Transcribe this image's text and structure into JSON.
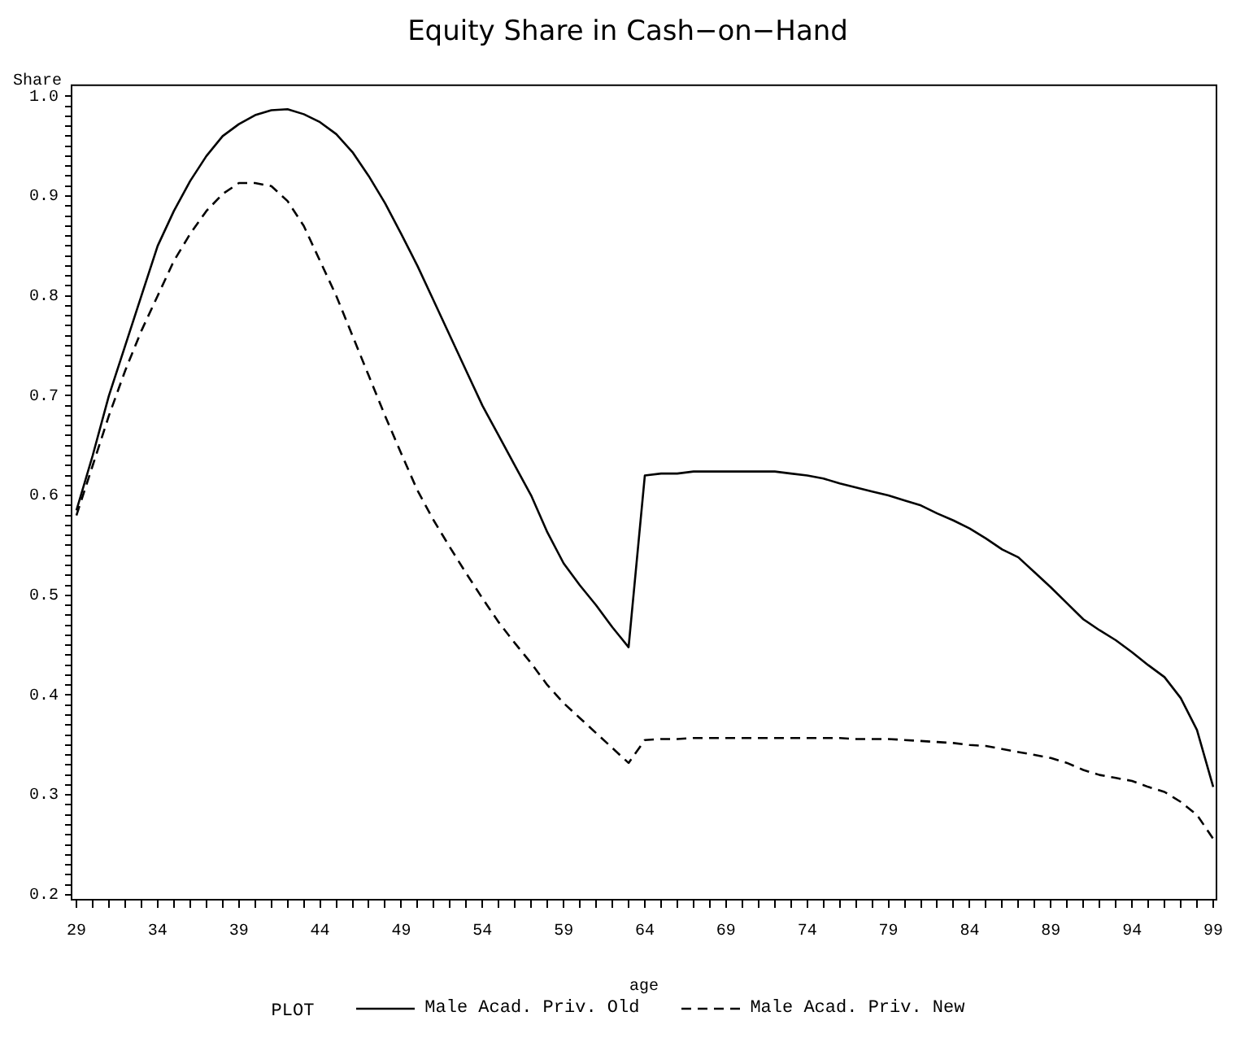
{
  "chart_data": {
    "type": "line",
    "title": "Equity Share in Cash−on−Hand",
    "xlabel": "age",
    "ylabel": "Share",
    "legend_title": "PLOT",
    "legend": "bottom",
    "x": [
      29,
      30,
      31,
      32,
      33,
      34,
      35,
      36,
      37,
      38,
      39,
      40,
      41,
      42,
      43,
      44,
      45,
      46,
      47,
      48,
      49,
      50,
      51,
      52,
      53,
      54,
      55,
      56,
      57,
      58,
      59,
      60,
      61,
      62,
      63,
      64,
      65,
      66,
      67,
      68,
      69,
      70,
      71,
      72,
      73,
      74,
      75,
      76,
      77,
      78,
      79,
      80,
      81,
      82,
      83,
      84,
      85,
      86,
      87,
      88,
      89,
      90,
      91,
      92,
      93,
      94,
      95,
      96,
      97,
      98,
      99
    ],
    "series": [
      {
        "name": "Male Acad. Priv. Old",
        "color": "#000000",
        "line_style": "solid",
        "values": [
          0.585,
          0.64,
          0.7,
          0.75,
          0.8,
          0.85,
          0.885,
          0.915,
          0.94,
          0.96,
          0.972,
          0.981,
          0.986,
          0.987,
          0.982,
          0.974,
          0.962,
          0.944,
          0.92,
          0.893,
          0.862,
          0.83,
          0.795,
          0.76,
          0.725,
          0.69,
          0.66,
          0.63,
          0.6,
          0.563,
          0.532,
          0.51,
          0.49,
          0.468,
          0.448,
          0.62,
          0.622,
          0.622,
          0.624,
          0.624,
          0.624,
          0.624,
          0.624,
          0.624,
          0.622,
          0.62,
          0.617,
          0.612,
          0.608,
          0.604,
          0.6,
          0.595,
          0.59,
          0.582,
          0.575,
          0.567,
          0.557,
          0.546,
          0.538,
          0.523,
          0.508,
          0.492,
          0.476,
          0.465,
          0.455,
          0.443,
          0.43,
          0.418,
          0.397,
          0.365,
          0.308
        ]
      },
      {
        "name": "Male Acad. Priv. New",
        "color": "#000000",
        "line_style": "dashed",
        "values": [
          0.58,
          0.63,
          0.68,
          0.725,
          0.765,
          0.8,
          0.835,
          0.862,
          0.885,
          0.902,
          0.913,
          0.913,
          0.91,
          0.895,
          0.87,
          0.835,
          0.8,
          0.76,
          0.72,
          0.68,
          0.642,
          0.605,
          0.575,
          0.548,
          0.522,
          0.497,
          0.473,
          0.452,
          0.432,
          0.41,
          0.392,
          0.377,
          0.362,
          0.347,
          0.332,
          0.355,
          0.356,
          0.356,
          0.357,
          0.357,
          0.357,
          0.357,
          0.357,
          0.357,
          0.357,
          0.357,
          0.357,
          0.357,
          0.356,
          0.356,
          0.356,
          0.355,
          0.354,
          0.353,
          0.352,
          0.35,
          0.349,
          0.346,
          0.343,
          0.34,
          0.337,
          0.332,
          0.325,
          0.32,
          0.317,
          0.314,
          0.308,
          0.303,
          0.293,
          0.28,
          0.256
        ]
      }
    ],
    "xlim": [
      28.7,
      99.2
    ],
    "ylim": [
      0.195,
      1.011
    ],
    "xticks": [
      29,
      {
        "value": 30,
        "label": null
      },
      {
        "value": 31,
        "label": null
      },
      {
        "value": 32,
        "label": null
      },
      {
        "value": 33,
        "label": null
      },
      34,
      {
        "value": 35,
        "label": null
      },
      {
        "value": 36,
        "label": null
      },
      {
        "value": 37,
        "label": null
      },
      {
        "value": 38,
        "label": null
      },
      39,
      {
        "value": 40,
        "label": null
      },
      {
        "value": 41,
        "label": null
      },
      {
        "value": 42,
        "label": null
      },
      {
        "value": 43,
        "label": null
      },
      44,
      {
        "value": 45,
        "label": null
      },
      {
        "value": 46,
        "label": null
      },
      {
        "value": 47,
        "label": null
      },
      {
        "value": 48,
        "label": null
      },
      49,
      {
        "value": 50,
        "label": null
      },
      {
        "value": 51,
        "label": null
      },
      {
        "value": 52,
        "label": null
      },
      {
        "value": 53,
        "label": null
      },
      54,
      {
        "value": 55,
        "label": null
      },
      {
        "value": 56,
        "label": null
      },
      {
        "value": 57,
        "label": null
      },
      {
        "value": 58,
        "label": null
      },
      59,
      {
        "value": 60,
        "label": null
      },
      {
        "value": 61,
        "label": null
      },
      {
        "value": 62,
        "label": null
      },
      {
        "value": 63,
        "label": null
      },
      64,
      {
        "value": 65,
        "label": null
      },
      {
        "value": 66,
        "label": null
      },
      {
        "value": 67,
        "label": null
      },
      {
        "value": 68,
        "label": null
      },
      69,
      {
        "value": 70,
        "label": null
      },
      {
        "value": 71,
        "label": null
      },
      {
        "value": 72,
        "label": null
      },
      {
        "value": 73,
        "label": null
      },
      74,
      {
        "value": 75,
        "label": null
      },
      {
        "value": 76,
        "label": null
      },
      {
        "value": 77,
        "label": null
      },
      {
        "value": 78,
        "label": null
      },
      79,
      {
        "value": 80,
        "label": null
      },
      {
        "value": 81,
        "label": null
      },
      {
        "value": 82,
        "label": null
      },
      {
        "value": 83,
        "label": null
      },
      84,
      {
        "value": 85,
        "label": null
      },
      {
        "value": 86,
        "label": null
      },
      {
        "value": 87,
        "label": null
      },
      {
        "value": 88,
        "label": null
      },
      89,
      {
        "value": 90,
        "label": null
      },
      {
        "value": 91,
        "label": null
      },
      {
        "value": 92,
        "label": null
      },
      {
        "value": 93,
        "label": null
      },
      94,
      {
        "value": 95,
        "label": null
      },
      {
        "value": 96,
        "label": null
      },
      {
        "value": 97,
        "label": null
      },
      {
        "value": 98,
        "label": null
      },
      99
    ],
    "yticks": [
      0.2,
      {
        "value": 0.21,
        "label": null
      },
      {
        "value": 0.22,
        "label": null
      },
      {
        "value": 0.23,
        "label": null
      },
      {
        "value": 0.24,
        "label": null
      },
      {
        "value": 0.25,
        "label": null
      },
      {
        "value": 0.26,
        "label": null
      },
      {
        "value": 0.27,
        "label": null
      },
      {
        "value": 0.28,
        "label": null
      },
      {
        "value": 0.29,
        "label": null
      },
      0.3,
      {
        "value": 0.31,
        "label": null
      },
      {
        "value": 0.32,
        "label": null
      },
      {
        "value": 0.33,
        "label": null
      },
      {
        "value": 0.34,
        "label": null
      },
      {
        "value": 0.35,
        "label": null
      },
      {
        "value": 0.36,
        "label": null
      },
      {
        "value": 0.37,
        "label": null
      },
      {
        "value": 0.38,
        "label": null
      },
      {
        "value": 0.39,
        "label": null
      },
      0.4,
      {
        "value": 0.41,
        "label": null
      },
      {
        "value": 0.42,
        "label": null
      },
      {
        "value": 0.43,
        "label": null
      },
      {
        "value": 0.44,
        "label": null
      },
      {
        "value": 0.45,
        "label": null
      },
      {
        "value": 0.46,
        "label": null
      },
      {
        "value": 0.47,
        "label": null
      },
      {
        "value": 0.48,
        "label": null
      },
      {
        "value": 0.49,
        "label": null
      },
      0.5,
      {
        "value": 0.51,
        "label": null
      },
      {
        "value": 0.52,
        "label": null
      },
      {
        "value": 0.53,
        "label": null
      },
      {
        "value": 0.54,
        "label": null
      },
      {
        "value": 0.55,
        "label": null
      },
      {
        "value": 0.56,
        "label": null
      },
      {
        "value": 0.57,
        "label": null
      },
      {
        "value": 0.58,
        "label": null
      },
      {
        "value": 0.59,
        "label": null
      },
      0.6,
      {
        "value": 0.61,
        "label": null
      },
      {
        "value": 0.62,
        "label": null
      },
      {
        "value": 0.63,
        "label": null
      },
      {
        "value": 0.64,
        "label": null
      },
      {
        "value": 0.65,
        "label": null
      },
      {
        "value": 0.66,
        "label": null
      },
      {
        "value": 0.67,
        "label": null
      },
      {
        "value": 0.68,
        "label": null
      },
      {
        "value": 0.69,
        "label": null
      },
      0.7,
      {
        "value": 0.71,
        "label": null
      },
      {
        "value": 0.72,
        "label": null
      },
      {
        "value": 0.73,
        "label": null
      },
      {
        "value": 0.74,
        "label": null
      },
      {
        "value": 0.75,
        "label": null
      },
      {
        "value": 0.76,
        "label": null
      },
      {
        "value": 0.77,
        "label": null
      },
      {
        "value": 0.78,
        "label": null
      },
      {
        "value": 0.79,
        "label": null
      },
      0.8,
      {
        "value": 0.81,
        "label": null
      },
      {
        "value": 0.82,
        "label": null
      },
      {
        "value": 0.83,
        "label": null
      },
      {
        "value": 0.84,
        "label": null
      },
      {
        "value": 0.85,
        "label": null
      },
      {
        "value": 0.86,
        "label": null
      },
      {
        "value": 0.87,
        "label": null
      },
      {
        "value": 0.88,
        "label": null
      },
      {
        "value": 0.89,
        "label": null
      },
      0.9,
      {
        "value": 0.91,
        "label": null
      },
      {
        "value": 0.92,
        "label": null
      },
      {
        "value": 0.93,
        "label": null
      },
      {
        "value": 0.94,
        "label": null
      },
      {
        "value": 0.95,
        "label": null
      },
      {
        "value": 0.96,
        "label": null
      },
      {
        "value": 0.97,
        "label": null
      },
      {
        "value": 0.98,
        "label": null
      },
      {
        "value": 0.99,
        "label": null
      },
      {
        "value": 1,
        "label": "1.0"
      }
    ]
  }
}
